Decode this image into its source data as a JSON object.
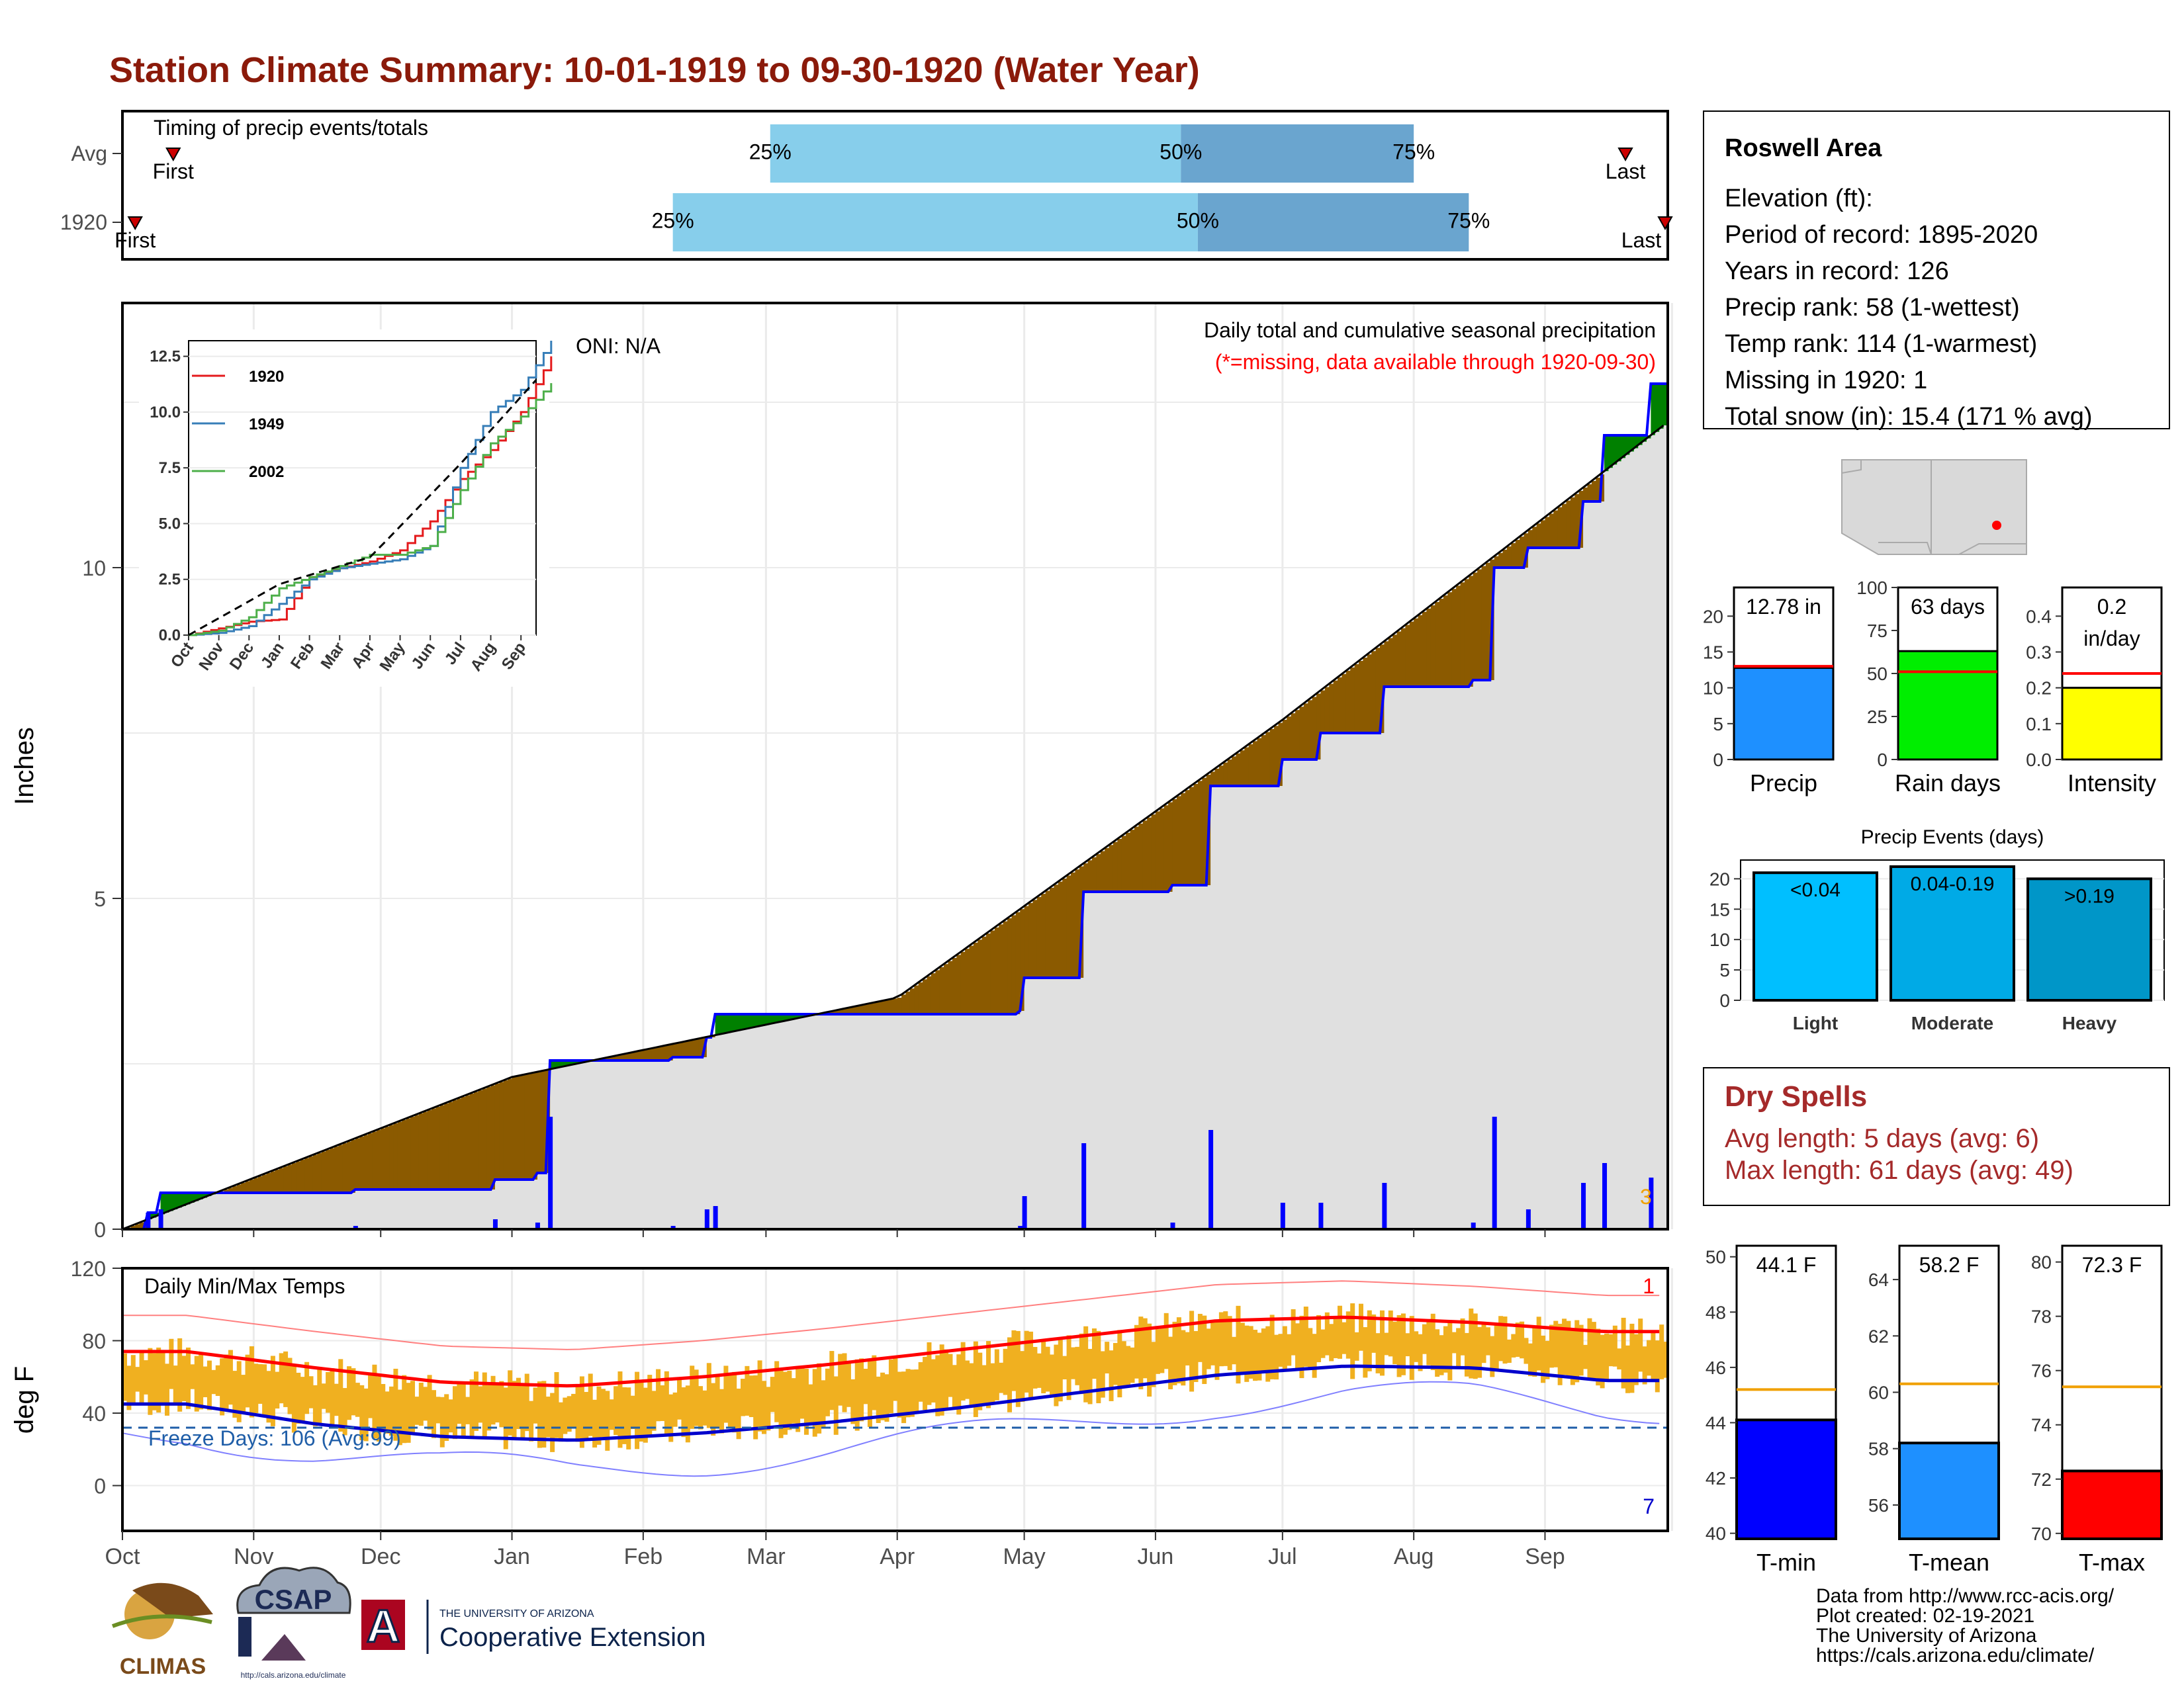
{
  "title": "Station Climate Summary: 10-01-1919 to 09-30-1920 (Water Year)",
  "colors": {
    "title": "#8b1a0a",
    "q_light": "#87ceeb",
    "q_dark": "#6aa5cf",
    "above": "#008000",
    "below": "#8b5a00",
    "area": "#e0e0e0",
    "precip_line": "#0000ff",
    "temp_bar": "#f0b020",
    "tmax_norm": "#ff0000",
    "tmin_norm": "#0000cc"
  },
  "timing": {
    "title": "Timing of precip events/totals",
    "rows": [
      {
        "label": "Avg",
        "first": "First",
        "last": "Last",
        "first_day": 12,
        "last_day": 355,
        "q25": "25%",
        "q50": "50%",
        "q75": "75%",
        "q25_day": 153,
        "q50_day": 250,
        "q75_day": 305
      },
      {
        "label": "1920",
        "first": "First",
        "last": "Last",
        "first_day": 3,
        "last_day": 365,
        "q25": "25%",
        "q50": "50%",
        "q75": "75%",
        "q25_day": 130,
        "q50_day": 254,
        "q75_day": 318
      }
    ]
  },
  "precip_panel": {
    "ylabel": "Inches",
    "yticks": [
      0,
      5,
      10
    ],
    "oni": "ONI: N/A",
    "caption": "Daily total and cumulative seasonal precipitation",
    "missing_note": "(*=missing, data available through 1920-09-30)",
    "corner_count": "3",
    "inset": {
      "yticks": [
        "0.0",
        "2.5",
        "5.0",
        "7.5",
        "10.0",
        "12.5"
      ],
      "xticks": [
        "Oct",
        "Nov",
        "Dec",
        "Jan",
        "Feb",
        "Mar",
        "Apr",
        "May",
        "Jun",
        "Jul",
        "Aug",
        "Sep"
      ],
      "legend": [
        "1920",
        "1949",
        "2002"
      ]
    }
  },
  "temp_panel": {
    "title": "Daily Min/Max Temps",
    "ylabel": "deg F",
    "yticks": [
      0,
      40,
      80,
      120
    ],
    "freeze": "Freeze Days: 106 (Avg:99)",
    "count_high": "1",
    "count_low": "7"
  },
  "months": [
    "Oct",
    "Nov",
    "Dec",
    "Jan",
    "Feb",
    "Mar",
    "Apr",
    "May",
    "Jun",
    "Jul",
    "Aug",
    "Sep"
  ],
  "info": {
    "name": "Roswell Area",
    "lines": [
      "Elevation (ft):",
      "Period of record: 1895-2020",
      "Years in record: 126",
      "Precip rank: 58 (1-wettest)",
      "Temp rank: 114 (1-warmest)",
      "Missing in 1920: 1",
      "Total snow (in): 15.4 (171 % avg)"
    ]
  },
  "mini_bars": [
    {
      "label": "Precip",
      "value_text": "12.78 in",
      "value": 12.78,
      "avg": 13,
      "ymax": 24,
      "ticks": [
        "0",
        "5",
        "10",
        "15",
        "20"
      ],
      "color": "#1e90ff"
    },
    {
      "label": "Rain days",
      "value_text": "63 days",
      "value": 63,
      "avg": 51,
      "ymax": 100,
      "ticks": [
        "0",
        "25",
        "50",
        "75",
        "100"
      ],
      "color": "#00ee00"
    },
    {
      "label": "Intensity",
      "value_text": "0.2\nin/day",
      "value": 0.2,
      "avg": 0.24,
      "ymax": 0.48,
      "ticks": [
        "0.0",
        "0.1",
        "0.2",
        "0.3",
        "0.4"
      ],
      "color": "#ffff00"
    }
  ],
  "precip_events": {
    "title": "Precip Events (days)",
    "ticks": [
      "0",
      "5",
      "10",
      "15",
      "20"
    ],
    "bars": [
      {
        "label": "Light",
        "range": "<0.04",
        "value": 21,
        "color": "#00bfff"
      },
      {
        "label": "Moderate",
        "range": "0.04-0.19",
        "value": 22,
        "color": "#00aae6"
      },
      {
        "label": "Heavy",
        "range": ">0.19",
        "value": 20,
        "color": "#0096c8"
      }
    ]
  },
  "dry_spells": {
    "title": "Dry Spells",
    "avg": "Avg length: 5 days (avg: 6)",
    "max": "Max length: 61 days (avg: 49)"
  },
  "temp_bars": [
    {
      "label": "T-min",
      "value_text": "44.1 F",
      "value": 44.1,
      "avg": 45.2,
      "ymin": 39.8,
      "ymax": 50.4,
      "ticks": [
        "40",
        "42",
        "44",
        "46",
        "48",
        "50"
      ],
      "color": "#0000ff"
    },
    {
      "label": "T-mean",
      "value_text": "58.2 F",
      "value": 58.2,
      "avg": 60.3,
      "ymin": 54.8,
      "ymax": 65.2,
      "ticks": [
        "56",
        "58",
        "60",
        "62",
        "64"
      ],
      "color": "#1e90ff"
    },
    {
      "label": "T-max",
      "value_text": "72.3 F",
      "value": 72.3,
      "avg": 75.4,
      "ymin": 69.8,
      "ymax": 80.6,
      "ticks": [
        "70",
        "72",
        "74",
        "76",
        "78",
        "80"
      ],
      "color": "#ff0000"
    }
  ],
  "footer": {
    "lines": [
      "Data from http://www.rcc-acis.org/",
      "Plot created: 02-19-2021",
      "The University of Arizona",
      "https://cals.arizona.edu/climate/"
    ],
    "logo1": "CLIMAS",
    "logo2": "CSAP",
    "logo2_sub": "http://cals.arizona.edu/climate",
    "ua_top": "THE UNIVERSITY OF ARIZONA",
    "ua_bottom": "Cooperative Extension"
  },
  "chart_data": [
    {
      "type": "area",
      "title": "Daily total and cumulative seasonal precipitation",
      "ylabel": "Inches",
      "ylim": [
        0,
        14
      ],
      "series": [
        {
          "name": "1920",
          "x": [
            "Oct 1",
            "Oct 7",
            "Oct 10",
            "Nov 25",
            "Dec 28",
            "Jan 7",
            "Jan 10",
            "Feb 8",
            "Feb 16",
            "Feb 18",
            "Apr 30",
            "May 1",
            "May 15",
            "Jun 5",
            "Jun 14",
            "Jul 1",
            "Jul 10",
            "Jul 25",
            "Aug 15",
            "Aug 20",
            "Aug 28",
            "Sep 10",
            "Sep 15",
            "Sep 26",
            "Sep 30"
          ],
          "values": [
            0.0,
            0.25,
            0.55,
            0.6,
            0.75,
            0.85,
            2.55,
            2.6,
            2.9,
            3.25,
            3.3,
            3.8,
            5.1,
            5.2,
            6.7,
            7.1,
            7.5,
            8.2,
            8.3,
            10.0,
            10.3,
            11.0,
            12.0,
            12.78,
            12.78
          ]
        }
      ],
      "average_cumulative": {
        "x": [
          "Oct 1",
          "Jan 1",
          "Apr 1",
          "Jul 1",
          "Sep 30"
        ],
        "values": [
          0.0,
          2.3,
          3.5,
          7.7,
          12.2
        ]
      }
    },
    {
      "type": "line",
      "title": "Daily Min/Max Temps",
      "ylabel": "deg F",
      "ylim": [
        -25,
        120
      ],
      "series": [
        {
          "name": "Normal max",
          "x": [
            "Oct",
            "Nov",
            "Dec",
            "Jan",
            "Feb",
            "Mar",
            "Apr",
            "May",
            "Jun",
            "Jul",
            "Aug",
            "Sep"
          ],
          "values": [
            74,
            65,
            57,
            55,
            60,
            67,
            75,
            83,
            91,
            93,
            90,
            85
          ]
        },
        {
          "name": "Normal min",
          "x": [
            "Oct",
            "Nov",
            "Dec",
            "Jan",
            "Feb",
            "Mar",
            "Apr",
            "May",
            "Jun",
            "Jul",
            "Aug",
            "Sep"
          ],
          "values": [
            45,
            34,
            27,
            25,
            29,
            35,
            43,
            52,
            61,
            66,
            65,
            58
          ]
        }
      ],
      "freeze_line": 32
    },
    {
      "type": "line",
      "title": "",
      "xlabel": "",
      "ylim": [
        0,
        13.2
      ],
      "categories": [
        "Oct",
        "Nov",
        "Dec",
        "Jan",
        "Feb",
        "Mar",
        "Apr",
        "May",
        "Jun",
        "Jul",
        "Aug",
        "Sep"
      ],
      "series": [
        {
          "name": "1920",
          "values": [
            0.3,
            0.6,
            0.7,
            2.6,
            3.0,
            3.3,
            3.8,
            5.1,
            7.0,
            8.3,
            10.0,
            12.5
          ]
        },
        {
          "name": "1949",
          "values": [
            0.1,
            0.4,
            1.4,
            2.5,
            3.0,
            3.2,
            3.4,
            4.0,
            7.5,
            10.0,
            11.0,
            13.2
          ]
        },
        {
          "name": "2002",
          "values": [
            0.2,
            0.8,
            2.1,
            2.6,
            3.1,
            3.6,
            3.6,
            4.0,
            6.5,
            8.6,
            9.8,
            11.3
          ]
        }
      ]
    },
    {
      "type": "bar",
      "title": "Precip Events (days)",
      "categories": [
        "Light",
        "Moderate",
        "Heavy"
      ],
      "values": [
        21,
        22,
        20
      ],
      "ylim": [
        0,
        22
      ]
    }
  ]
}
